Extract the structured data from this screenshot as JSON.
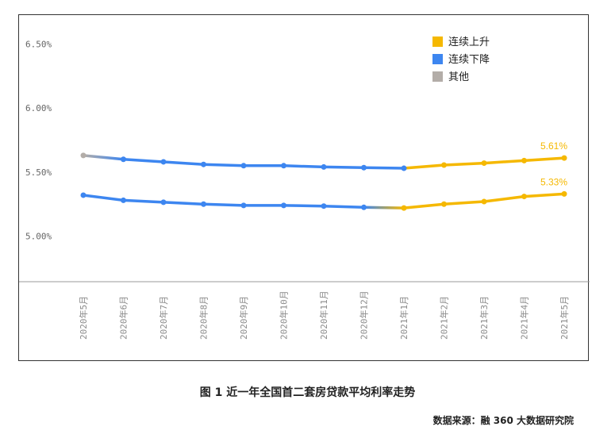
{
  "chart_data": {
    "type": "line",
    "categories": [
      "2020年5月",
      "2020年6月",
      "2020年7月",
      "2020年8月",
      "2020年9月",
      "2020年10月",
      "2020年11月",
      "2020年12月",
      "2021年1月",
      "2021年2月",
      "2021年3月",
      "2021年4月",
      "2021年5月"
    ],
    "series": [
      {
        "values": [
          5.63,
          5.6,
          5.58,
          5.56,
          5.55,
          5.55,
          5.54,
          5.535,
          5.53,
          5.555,
          5.57,
          5.59,
          5.61
        ]
      },
      {
        "values": [
          5.32,
          5.28,
          5.265,
          5.25,
          5.24,
          5.24,
          5.235,
          5.225,
          5.22,
          5.25,
          5.27,
          5.31,
          5.33
        ]
      }
    ],
    "end_labels": [
      "5.61%",
      "5.33%"
    ],
    "ylim": [
      4.645,
      6.725
    ],
    "yticks": [
      {
        "value": 6.5,
        "label": "6.50%"
      },
      {
        "value": 6.0,
        "label": "6.00%"
      },
      {
        "value": 5.5,
        "label": "5.50%"
      },
      {
        "value": 5.0,
        "label": "5.00%"
      }
    ],
    "legend": {
      "position": "top-right",
      "items": [
        {
          "label": "连续上升",
          "color": "#f5b800"
        },
        {
          "label": "连续下降",
          "color": "#3d86f0"
        },
        {
          "label": "其他",
          "color": "#b3ada8"
        }
      ]
    },
    "segment_colors": [
      "other",
      "down",
      "down",
      "down",
      "down",
      "down",
      "down",
      "down",
      "up",
      "up",
      "up",
      "up"
    ],
    "segment_colors_series2": [
      "down",
      "down",
      "down",
      "down",
      "down",
      "down",
      "down",
      "other",
      "up",
      "up",
      "up",
      "up"
    ],
    "grid": false
  },
  "colors": {
    "up": "#f5b800",
    "down": "#3d86f0",
    "other": "#b3ada8",
    "axis": "#999999"
  },
  "caption": "图 1 近一年全国首二套房贷款平均利率走势",
  "source": "数据来源：融 360 大数据研究院"
}
